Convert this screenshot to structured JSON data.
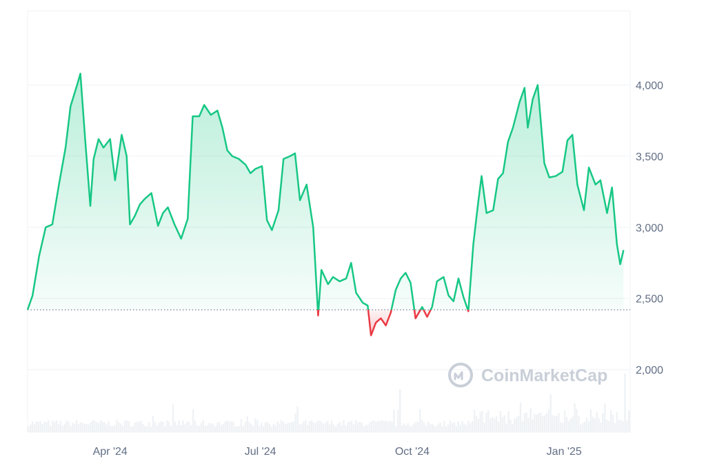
{
  "chart_data": {
    "type": "area",
    "x_tick_labels": [
      "Apr '24",
      "Jul '24",
      "Oct '24",
      "Jan '25"
    ],
    "x_tick_dates": [
      "2024-04-01",
      "2024-07-01",
      "2024-10-01",
      "2025-01-01"
    ],
    "x_range": [
      "2024-02-11",
      "2025-02-10"
    ],
    "y_tick_labels": [
      "2,000",
      "2,500",
      "3,000",
      "3,500",
      "4,000"
    ],
    "y_ticks": [
      2000,
      2500,
      3000,
      3500,
      4000
    ],
    "ylim": [
      1560,
      4520
    ],
    "baseline": 2420,
    "grid": true,
    "colors": {
      "up": "#16c784",
      "down": "#ea3943",
      "volume": "#eff2f5",
      "grid": "#eff2f5",
      "axis_text": "#616e85",
      "baseline": "#616e85"
    },
    "watermark": "CoinMarketCap",
    "series": [
      {
        "points": [
          [
            "2024-02-11",
            2420
          ],
          [
            "2024-02-14",
            2520
          ],
          [
            "2024-02-18",
            2800
          ],
          [
            "2024-02-22",
            3000
          ],
          [
            "2024-02-26",
            3020
          ],
          [
            "2024-03-01",
            3300
          ],
          [
            "2024-03-05",
            3560
          ],
          [
            "2024-03-08",
            3850
          ],
          [
            "2024-03-12",
            4000
          ],
          [
            "2024-03-14",
            4080
          ],
          [
            "2024-03-17",
            3600
          ],
          [
            "2024-03-20",
            3150
          ],
          [
            "2024-03-22",
            3480
          ],
          [
            "2024-03-25",
            3620
          ],
          [
            "2024-03-28",
            3560
          ],
          [
            "2024-04-01",
            3620
          ],
          [
            "2024-04-04",
            3330
          ],
          [
            "2024-04-08",
            3650
          ],
          [
            "2024-04-11",
            3500
          ],
          [
            "2024-04-13",
            3020
          ],
          [
            "2024-04-16",
            3080
          ],
          [
            "2024-04-19",
            3160
          ],
          [
            "2024-04-22",
            3200
          ],
          [
            "2024-04-26",
            3240
          ],
          [
            "2024-04-30",
            3010
          ],
          [
            "2024-05-03",
            3100
          ],
          [
            "2024-05-06",
            3140
          ],
          [
            "2024-05-10",
            3020
          ],
          [
            "2024-05-14",
            2920
          ],
          [
            "2024-05-18",
            3060
          ],
          [
            "2024-05-21",
            3780
          ],
          [
            "2024-05-25",
            3780
          ],
          [
            "2024-05-28",
            3860
          ],
          [
            "2024-06-01",
            3790
          ],
          [
            "2024-06-05",
            3820
          ],
          [
            "2024-06-08",
            3700
          ],
          [
            "2024-06-11",
            3540
          ],
          [
            "2024-06-14",
            3500
          ],
          [
            "2024-06-18",
            3480
          ],
          [
            "2024-06-22",
            3440
          ],
          [
            "2024-06-25",
            3380
          ],
          [
            "2024-06-28",
            3410
          ],
          [
            "2024-07-02",
            3430
          ],
          [
            "2024-07-05",
            3050
          ],
          [
            "2024-07-08",
            2980
          ],
          [
            "2024-07-12",
            3120
          ],
          [
            "2024-07-15",
            3480
          ],
          [
            "2024-07-19",
            3500
          ],
          [
            "2024-07-22",
            3520
          ],
          [
            "2024-07-25",
            3190
          ],
          [
            "2024-07-29",
            3300
          ],
          [
            "2024-08-02",
            3000
          ],
          [
            "2024-08-05",
            2380
          ],
          [
            "2024-08-07",
            2700
          ],
          [
            "2024-08-11",
            2600
          ],
          [
            "2024-08-14",
            2650
          ],
          [
            "2024-08-18",
            2620
          ],
          [
            "2024-08-22",
            2640
          ],
          [
            "2024-08-25",
            2750
          ],
          [
            "2024-08-28",
            2540
          ],
          [
            "2024-09-01",
            2470
          ],
          [
            "2024-09-04",
            2450
          ],
          [
            "2024-09-06",
            2240
          ],
          [
            "2024-09-09",
            2330
          ],
          [
            "2024-09-12",
            2360
          ],
          [
            "2024-09-15",
            2310
          ],
          [
            "2024-09-18",
            2400
          ],
          [
            "2024-09-21",
            2560
          ],
          [
            "2024-09-24",
            2640
          ],
          [
            "2024-09-27",
            2680
          ],
          [
            "2024-09-30",
            2610
          ],
          [
            "2024-10-03",
            2360
          ],
          [
            "2024-10-07",
            2440
          ],
          [
            "2024-10-10",
            2370
          ],
          [
            "2024-10-13",
            2440
          ],
          [
            "2024-10-16",
            2620
          ],
          [
            "2024-10-20",
            2650
          ],
          [
            "2024-10-23",
            2520
          ],
          [
            "2024-10-26",
            2480
          ],
          [
            "2024-10-29",
            2640
          ],
          [
            "2024-11-01",
            2510
          ],
          [
            "2024-11-04",
            2410
          ],
          [
            "2024-11-07",
            2880
          ],
          [
            "2024-11-10",
            3180
          ],
          [
            "2024-11-12",
            3360
          ],
          [
            "2024-11-15",
            3100
          ],
          [
            "2024-11-19",
            3120
          ],
          [
            "2024-11-22",
            3340
          ],
          [
            "2024-11-25",
            3380
          ],
          [
            "2024-11-28",
            3600
          ],
          [
            "2024-12-01",
            3700
          ],
          [
            "2024-12-05",
            3880
          ],
          [
            "2024-12-08",
            3980
          ],
          [
            "2024-12-10",
            3700
          ],
          [
            "2024-12-13",
            3900
          ],
          [
            "2024-12-16",
            4000
          ],
          [
            "2024-12-20",
            3450
          ],
          [
            "2024-12-23",
            3350
          ],
          [
            "2024-12-27",
            3360
          ],
          [
            "2024-12-31",
            3390
          ],
          [
            "2025-01-03",
            3610
          ],
          [
            "2025-01-06",
            3650
          ],
          [
            "2025-01-09",
            3300
          ],
          [
            "2025-01-13",
            3120
          ],
          [
            "2025-01-16",
            3420
          ],
          [
            "2025-01-20",
            3300
          ],
          [
            "2025-01-23",
            3330
          ],
          [
            "2025-01-27",
            3100
          ],
          [
            "2025-01-30",
            3280
          ],
          [
            "2025-02-02",
            2880
          ],
          [
            "2025-02-04",
            2740
          ],
          [
            "2025-02-06",
            2840
          ]
        ]
      }
    ]
  }
}
